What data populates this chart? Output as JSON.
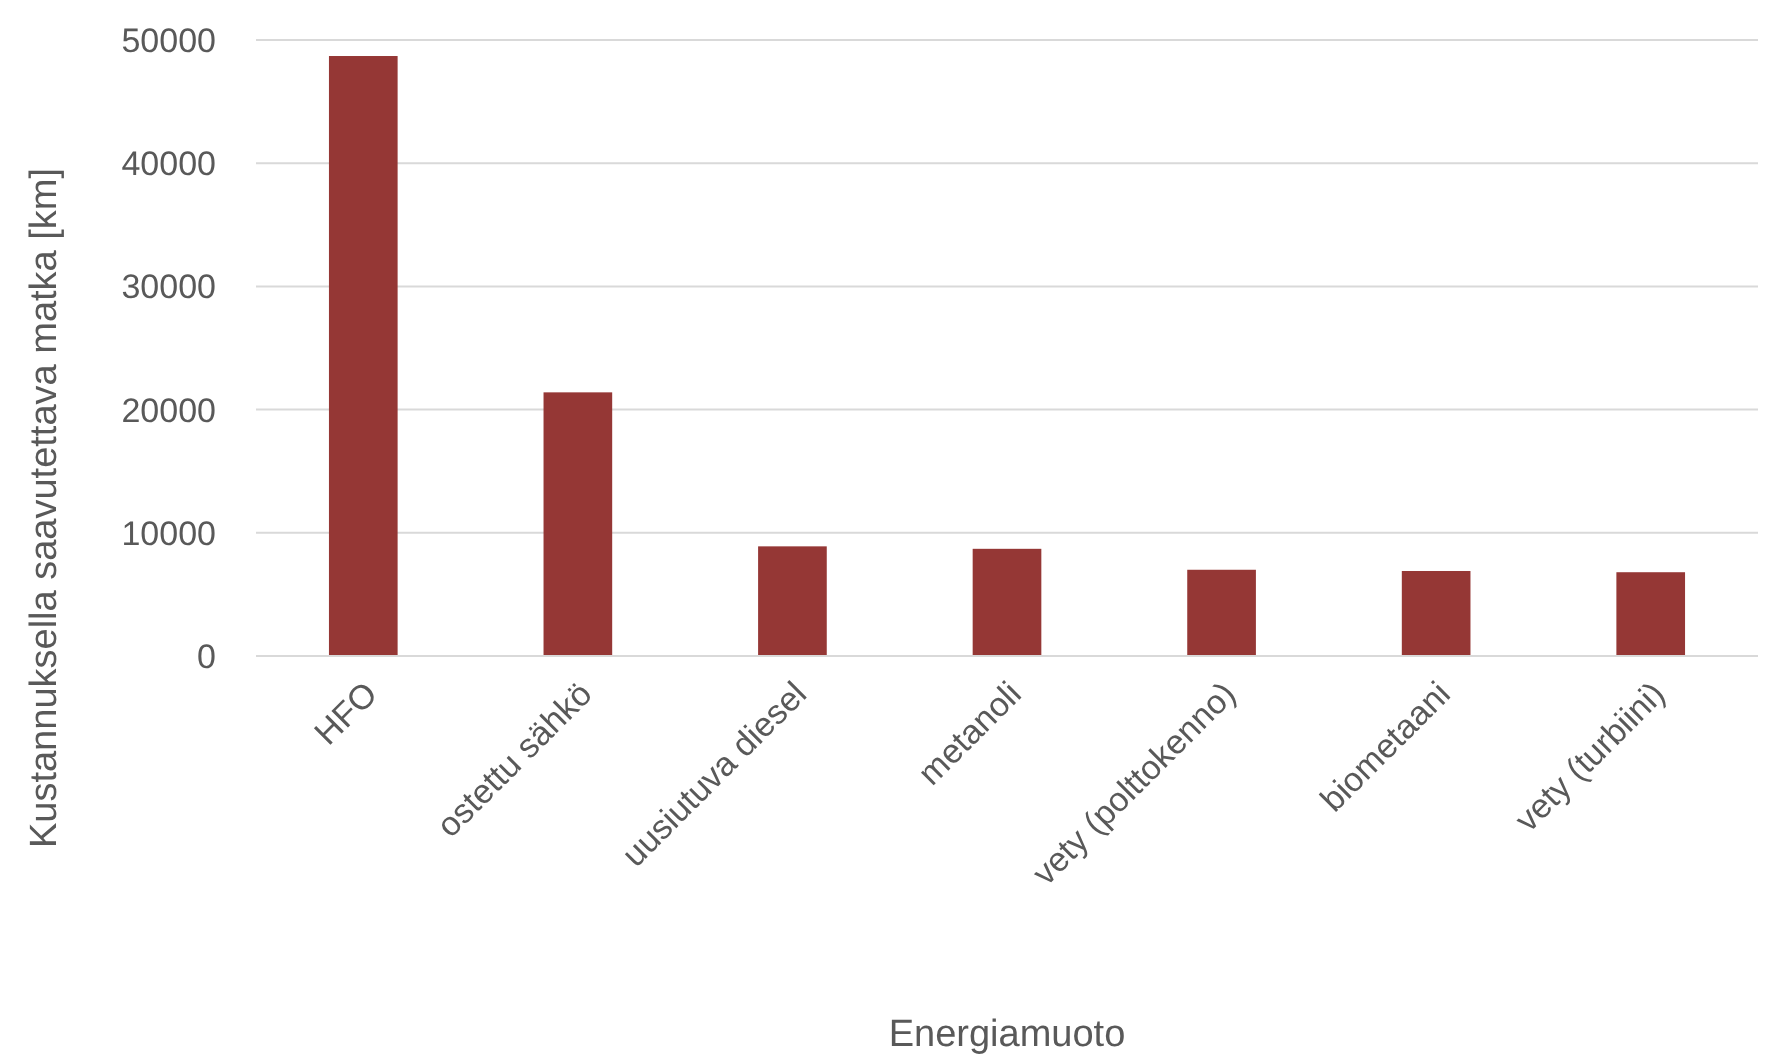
{
  "chart_data": {
    "type": "bar",
    "xlabel": "Energiamuoto",
    "ylabel": "Kustannuksella saavutettava matka [km]",
    "categories": [
      "HFO",
      "ostettu sähkö",
      "uusiutuva diesel",
      "metanoli",
      "vety (polttokenno)",
      "biometaani",
      "vety (turbiini)"
    ],
    "values": [
      48700,
      21400,
      8900,
      8700,
      7000,
      6900,
      6800
    ],
    "color": "#953735",
    "ylim": [
      0,
      50000
    ],
    "yticks": [
      0,
      10000,
      20000,
      30000,
      40000,
      50000
    ],
    "grid": "y"
  }
}
